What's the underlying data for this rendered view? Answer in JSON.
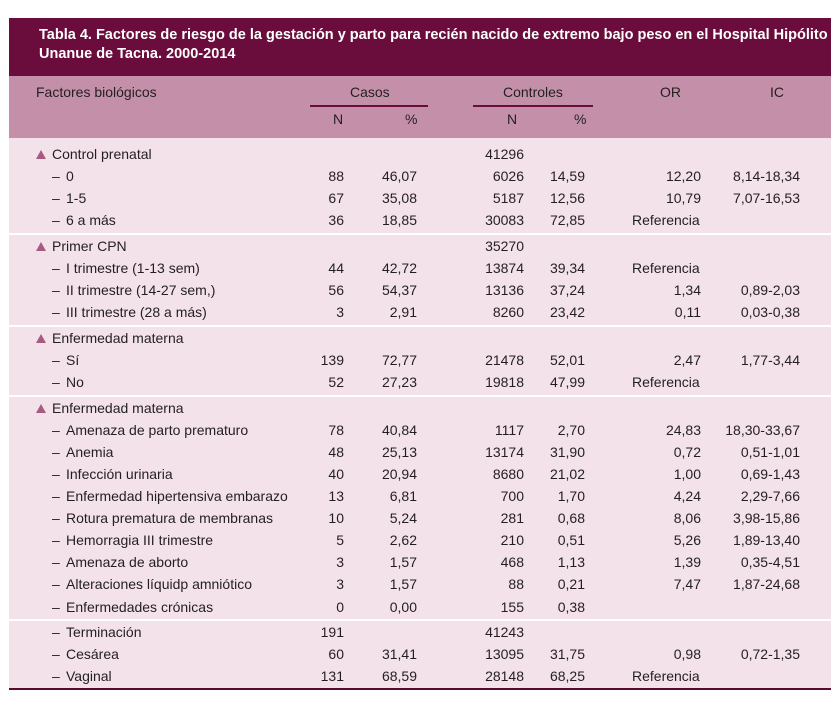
{
  "table": {
    "title_line1": "Tabla 4. Factores de riesgo de la gestación y parto para recién nacido de extremo bajo peso en el Hospital Hipólito",
    "title_line2": "Unanue de Tacna. 2000-2014",
    "headers": {
      "factor": "Factores biológicos",
      "casos": "Casos",
      "controles": "Controles",
      "or": "OR",
      "ic": "IC",
      "n": "N",
      "pct": "%"
    },
    "groups": [
      {
        "rows": [
          {
            "label": "Control prenatal",
            "kind": "cat",
            "n": "",
            "pct": "",
            "cn": "41296",
            "cp": "",
            "or": "",
            "ic": ""
          },
          {
            "label": "0",
            "kind": "sub",
            "n": "88",
            "pct": "46,07",
            "cn": "6026",
            "cp": "14,59",
            "or": "12,20",
            "ic": "8,14-18,34"
          },
          {
            "label": "1-5",
            "kind": "sub",
            "n": "67",
            "pct": "35,08",
            "cn": "5187",
            "cp": "12,56",
            "or": "10,79",
            "ic": "7,07-16,53"
          },
          {
            "label": "6 a más",
            "kind": "sub",
            "n": "36",
            "pct": "18,85",
            "cn": "30083",
            "cp": "72,85",
            "or": "Referencia",
            "ic": ""
          }
        ]
      },
      {
        "rows": [
          {
            "label": "Primer CPN",
            "kind": "cat",
            "n": "",
            "pct": "",
            "cn": "35270",
            "cp": "",
            "or": "",
            "ic": ""
          },
          {
            "label": "I trimestre (1-13 sem)",
            "kind": "sub",
            "n": "44",
            "pct": "42,72",
            "cn": "13874",
            "cp": "39,34",
            "or": "Referencia",
            "ic": ""
          },
          {
            "label": "II trimestre (14-27 sem,)",
            "kind": "sub",
            "n": "56",
            "pct": "54,37",
            "cn": "13136",
            "cp": "37,24",
            "or": "1,34",
            "ic": "0,89-2,03"
          },
          {
            "label": "III trimestre (28 a más)",
            "kind": "sub",
            "n": "3",
            "pct": "2,91",
            "cn": "8260",
            "cp": "23,42",
            "or": "0,11",
            "ic": "0,03-0,38"
          }
        ]
      },
      {
        "rows": [
          {
            "label": "Enfermedad materna",
            "kind": "cat",
            "n": "",
            "pct": "",
            "cn": "",
            "cp": "",
            "or": "",
            "ic": ""
          },
          {
            "label": "Sí",
            "kind": "sub",
            "n": "139",
            "pct": "72,77",
            "cn": "21478",
            "cp": "52,01",
            "or": "2,47",
            "ic": "1,77-3,44"
          },
          {
            "label": "No",
            "kind": "sub",
            "n": "52",
            "pct": "27,23",
            "cn": "19818",
            "cp": "47,99",
            "or": "Referencia",
            "ic": ""
          }
        ]
      },
      {
        "rows": [
          {
            "label": "Enfermedad materna",
            "kind": "cat",
            "n": "",
            "pct": "",
            "cn": "",
            "cp": "",
            "or": "",
            "ic": ""
          },
          {
            "label": "Amenaza de parto prematuro",
            "kind": "sub",
            "n": "78",
            "pct": "40,84",
            "cn": "1117",
            "cp": "2,70",
            "or": "24,83",
            "ic": "18,30-33,67"
          },
          {
            "label": "Anemia",
            "kind": "sub",
            "n": "48",
            "pct": "25,13",
            "cn": "13174",
            "cp": "31,90",
            "or": "0,72",
            "ic": "0,51-1,01"
          },
          {
            "label": "Infección urinaria",
            "kind": "sub",
            "n": "40",
            "pct": "20,94",
            "cn": "8680",
            "cp": "21,02",
            "or": "1,00",
            "ic": "0,69-1,43"
          },
          {
            "label": "Enfermedad hipertensiva embarazo",
            "kind": "sub",
            "n": "13",
            "pct": "6,81",
            "cn": "700",
            "cp": "1,70",
            "or": "4,24",
            "ic": "2,29-7,66"
          },
          {
            "label": "Rotura prematura de membranas",
            "kind": "sub",
            "n": "10",
            "pct": "5,24",
            "cn": "281",
            "cp": "0,68",
            "or": "8,06",
            "ic": "3,98-15,86"
          },
          {
            "label": "Hemorragia III trimestre",
            "kind": "sub",
            "n": "5",
            "pct": "2,62",
            "cn": "210",
            "cp": "0,51",
            "or": "5,26",
            "ic": "1,89-13,40"
          },
          {
            "label": "Amenaza de aborto",
            "kind": "sub",
            "n": "3",
            "pct": "1,57",
            "cn": "468",
            "cp": "1,13",
            "or": "1,39",
            "ic": "0,35-4,51"
          },
          {
            "label": "Alteraciones líquidp amniótico",
            "kind": "sub",
            "n": "3",
            "pct": "1,57",
            "cn": "88",
            "cp": "0,21",
            "or": "7,47",
            "ic": "1,87-24,68"
          },
          {
            "label": "Enfermedades crónicas",
            "kind": "sub",
            "n": "0",
            "pct": "0,00",
            "cn": "155",
            "cp": "0,38",
            "or": "",
            "ic": ""
          }
        ]
      },
      {
        "rows": [
          {
            "label": "Terminación",
            "kind": "sub",
            "n": "191",
            "pct": "",
            "cn": "41243",
            "cp": "",
            "or": "",
            "ic": ""
          },
          {
            "label": "Cesárea",
            "kind": "sub",
            "n": "60",
            "pct": "31,41",
            "cn": "13095",
            "cp": "31,75",
            "or": "0,98",
            "ic": "0,72-1,35"
          },
          {
            "label": "Vaginal",
            "kind": "sub",
            "n": "131",
            "pct": "68,59",
            "cn": "28148",
            "cp": "68,25",
            "or": "Referencia",
            "ic": ""
          }
        ]
      }
    ]
  },
  "colors": {
    "title_bg": "#6b0d3c",
    "header_bg": "#c490a9",
    "body_bg": "#f3e2ea",
    "marker": "#a85a80"
  }
}
